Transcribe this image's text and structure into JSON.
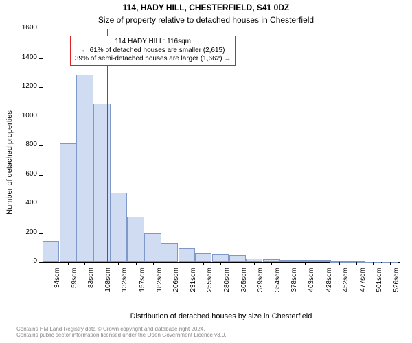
{
  "title": "114, HADY HILL, CHESTERFIELD, S41 0DZ",
  "subtitle": "Size of property relative to detached houses in Chesterfield",
  "x_axis_label": "Distribution of detached houses by size in Chesterfield",
  "y_axis_label": "Number of detached properties",
  "footer_line1": "Contains HM Land Registry data © Crown copyright and database right 2024.",
  "footer_line2": "Contains public sector information licensed under the Open Government Licence v3.0.",
  "chart": {
    "type": "histogram",
    "background_color": "#ffffff",
    "bar_fill": "#cfdcf2",
    "bar_border": "#7f98c9",
    "axis_color": "#000000",
    "marker_color": "#e02020",
    "marker_x_value": 116,
    "annotation_border": "#e02020",
    "annotation_lines": [
      "114 HADY HILL: 116sqm",
      "← 61% of detached houses are smaller (2,615)",
      "39% of semi-detached houses are larger (1,662) →"
    ],
    "title_fontsize": 12,
    "subtitle_fontsize": 12,
    "axis_label_fontsize": 11,
    "tick_fontsize": 10,
    "annotation_fontsize": 10,
    "footer_fontsize": 8,
    "footer_color": "#888888",
    "xlim": [
      22,
      540
    ],
    "ylim": [
      0,
      1600
    ],
    "y_ticks": [
      0,
      200,
      400,
      600,
      800,
      1000,
      1200,
      1400,
      1600
    ],
    "x_tick_values": [
      34,
      59,
      83,
      108,
      132,
      157,
      182,
      206,
      231,
      255,
      280,
      305,
      329,
      354,
      378,
      403,
      428,
      452,
      477,
      501,
      526
    ],
    "x_tick_labels": [
      "34sqm",
      "59sqm",
      "83sqm",
      "108sqm",
      "132sqm",
      "157sqm",
      "182sqm",
      "206sqm",
      "231sqm",
      "255sqm",
      "280sqm",
      "305sqm",
      "329sqm",
      "354sqm",
      "378sqm",
      "403sqm",
      "428sqm",
      "452sqm",
      "477sqm",
      "501sqm",
      "526sqm"
    ],
    "bar_x_values": [
      34,
      59,
      83,
      108,
      132,
      157,
      182,
      206,
      231,
      255,
      280,
      305,
      329,
      354,
      378,
      403,
      428,
      452,
      477,
      501,
      526
    ],
    "bar_heights": [
      140,
      815,
      1285,
      1085,
      475,
      310,
      200,
      130,
      95,
      60,
      55,
      45,
      25,
      20,
      12,
      15,
      12,
      5,
      3,
      2,
      2
    ],
    "bar_width_value": 24.5
  }
}
